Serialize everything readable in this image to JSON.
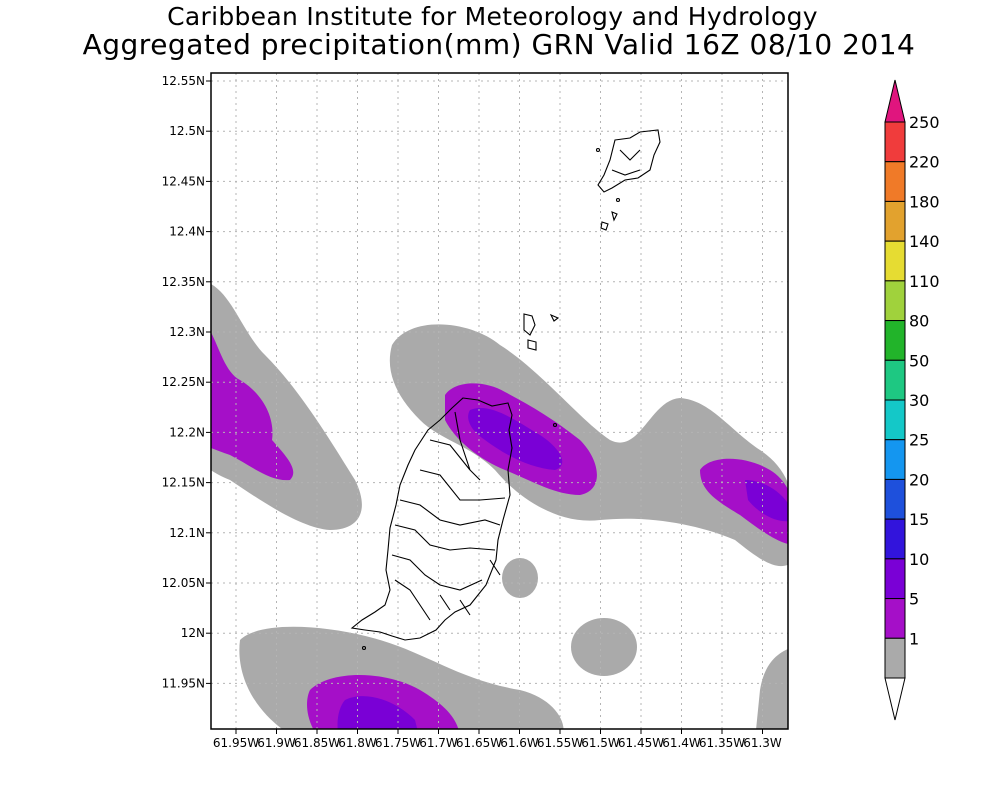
{
  "title": {
    "line1": "Caribbean Institute for Meteorology and Hydrology",
    "line2": "Aggregated precipitation(mm) GRN Valid 16Z 08/10 2014"
  },
  "map": {
    "lat_labels": [
      "12.55N",
      "12.5N",
      "12.45N",
      "12.4N",
      "12.35N",
      "12.3N",
      "12.25N",
      "12.2N",
      "12.15N",
      "12.1N",
      "12.05N",
      "12N",
      "11.95N"
    ],
    "lon_labels": [
      "61.95W",
      "61.9W",
      "61.85W",
      "61.8W",
      "61.75W",
      "61.7W",
      "61.65W",
      "61.6W",
      "61.55W",
      "61.5W",
      "61.45W",
      "61.4W",
      "61.35W",
      "61.3W"
    ]
  },
  "colorbar": {
    "levels": [
      "250",
      "220",
      "180",
      "140",
      "110",
      "80",
      "50",
      "30",
      "25",
      "20",
      "15",
      "10",
      "5",
      "1"
    ],
    "colors": [
      "#e0157e",
      "#f03c3c",
      "#f07a28",
      "#e2a22e",
      "#e6dc32",
      "#a0d23c",
      "#22b42a",
      "#1ec882",
      "#14c8c8",
      "#1496f0",
      "#1e50dc",
      "#3214dc",
      "#7a00d6",
      "#a50fc8",
      "#aaaaaa",
      "#ffffff"
    ]
  },
  "palette": {
    "light": "#aaaaaa",
    "mid": "#a50fc8",
    "dark": "#7a00d6"
  }
}
